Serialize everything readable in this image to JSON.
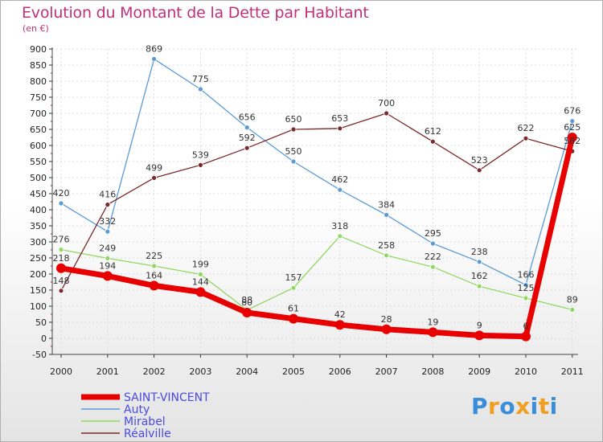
{
  "title": "Evolution du Montant de la Dette par Habitant",
  "unit": "(en €)",
  "logo": {
    "letters": [
      "P",
      "r",
      "o",
      "x",
      "i",
      "t",
      "i"
    ],
    "colors": [
      "#3a8dd8",
      "#f0a020",
      "#3a8dd8",
      "#f0a020",
      "#3a8dd8",
      "#f0a020",
      "#3a8dd8"
    ]
  },
  "colors": {
    "title": "#c0307a",
    "legend_text": "#4a4ae0",
    "grid": "#dcdcdc",
    "axis_tick": "#d02020"
  },
  "chart_data": {
    "type": "line",
    "title": "Evolution du Montant de la Dette par Habitant",
    "ylabel": "(en €)",
    "xlabel": "",
    "x": [
      "2000",
      "2001",
      "2002",
      "2003",
      "2004",
      "2005",
      "2006",
      "2007",
      "2008",
      "2009",
      "2010",
      "2011"
    ],
    "ylim": [
      -50,
      900
    ],
    "yticks": [
      -50,
      0,
      50,
      100,
      150,
      200,
      250,
      300,
      350,
      400,
      450,
      500,
      550,
      600,
      650,
      700,
      750,
      800,
      850,
      900
    ],
    "grid": true,
    "legend_position": "bottom-left",
    "series": [
      {
        "name": "SAINT-VINCENT",
        "color": "#e80000",
        "width": 7,
        "marker": 6,
        "values": [
          218,
          194,
          164,
          144,
          80,
          61,
          42,
          28,
          19,
          9,
          6,
          625
        ],
        "labels": [
          "218",
          "194",
          "164",
          "144",
          "80",
          "61",
          "42",
          "28",
          "19",
          "9",
          "6",
          "625"
        ]
      },
      {
        "name": "Auty",
        "color": "#5b9bd5",
        "width": 1.3,
        "marker": 3,
        "values": [
          420,
          332,
          869,
          775,
          656,
          550,
          462,
          384,
          295,
          238,
          166,
          676
        ],
        "labels": [
          "420",
          "332",
          "869",
          "775",
          "656",
          "550",
          "462",
          "384",
          "295",
          "238",
          "166",
          "676"
        ]
      },
      {
        "name": "Mirabel",
        "color": "#90d860",
        "width": 1.3,
        "marker": 3,
        "values": [
          276,
          249,
          225,
          199,
          88,
          157,
          318,
          258,
          222,
          162,
          125,
          89
        ],
        "labels": [
          "276",
          "249",
          "225",
          "199",
          "88",
          "157",
          "318",
          "258",
          "222",
          "162",
          "125",
          "89"
        ]
      },
      {
        "name": "Réalville",
        "color": "#7a2a2a",
        "width": 1.3,
        "marker": 3,
        "values": [
          148,
          416,
          499,
          539,
          592,
          650,
          653,
          700,
          612,
          523,
          622,
          582
        ],
        "labels": [
          "148",
          "416",
          "499",
          "539",
          "592",
          "650",
          "653",
          "700",
          "612",
          "523",
          "622",
          "582"
        ]
      }
    ]
  }
}
